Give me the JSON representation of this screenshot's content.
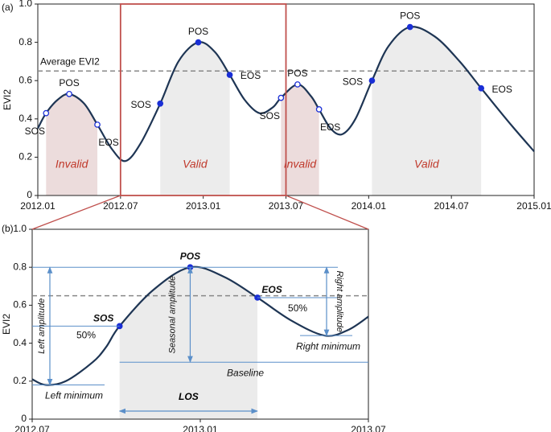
{
  "chart_data": [
    {
      "type": "line",
      "panel_label": "(a)",
      "ylabel": "EVI2",
      "color": "#1e3554",
      "marker_color": "#1a2fd6",
      "x": [
        2012.0,
        2012.05,
        2012.12,
        2012.19,
        2012.28,
        2012.36,
        2012.45,
        2012.53,
        2012.62,
        2012.74,
        2012.85,
        2012.97,
        2013.07,
        2013.16,
        2013.25,
        2013.34,
        2013.42,
        2013.47,
        2013.57,
        2013.65,
        2013.7,
        2013.77,
        2013.84,
        2013.92,
        2014.02,
        2014.12,
        2014.25,
        2014.4,
        2014.55,
        2014.68,
        2014.85,
        2015.0
      ],
      "values": [
        0.35,
        0.43,
        0.5,
        0.53,
        0.48,
        0.37,
        0.24,
        0.18,
        0.27,
        0.48,
        0.7,
        0.8,
        0.75,
        0.63,
        0.5,
        0.43,
        0.46,
        0.51,
        0.58,
        0.52,
        0.45,
        0.35,
        0.32,
        0.4,
        0.6,
        0.78,
        0.88,
        0.83,
        0.7,
        0.56,
        0.38,
        0.23
      ],
      "xlim": [
        2012.0,
        2015.0
      ],
      "ylim": [
        0,
        1
      ],
      "xticks": [
        {
          "value": 2012.0,
          "label": "2012.01"
        },
        {
          "value": 2012.5,
          "label": "2012.07"
        },
        {
          "value": 2013.0,
          "label": "2013.01"
        },
        {
          "value": 2013.5,
          "label": "2013.07"
        },
        {
          "value": 2014.0,
          "label": "2014.01"
        },
        {
          "value": 2014.5,
          "label": "2014.07"
        },
        {
          "value": 2015.0,
          "label": "2015.01"
        }
      ],
      "yticks": [
        0,
        0.2,
        0.4,
        0.6,
        0.8,
        {
          "value": 1,
          "label": "1.0"
        }
      ],
      "average": {
        "label": "Average EVI2",
        "value": 0.65
      },
      "regions": [
        {
          "label": "Invalid",
          "start": 2012.05,
          "end": 2012.36,
          "color": "#ecdcdc",
          "label_color": "#c0392b"
        },
        {
          "label": "Valid",
          "start": 2012.74,
          "end": 2013.16,
          "color": "#ececec",
          "label_color": "#c0392b"
        },
        {
          "label": "Invalid",
          "start": 2013.47,
          "end": 2013.7,
          "color": "#ecdcdc",
          "label_color": "#c0392b"
        },
        {
          "label": "Valid",
          "start": 2014.02,
          "end": 2014.68,
          "color": "#ececec",
          "label_color": "#c0392b"
        }
      ],
      "markers": [
        {
          "label": "SOS",
          "x": 2012.05,
          "y": 0.43,
          "filled": false
        },
        {
          "label": "POS",
          "x": 2012.19,
          "y": 0.53,
          "filled": false
        },
        {
          "label": "EOS",
          "x": 2012.36,
          "y": 0.37,
          "filled": false
        },
        {
          "label": "SOS",
          "x": 2012.74,
          "y": 0.48,
          "filled": true
        },
        {
          "label": "POS",
          "x": 2012.97,
          "y": 0.8,
          "filled": true
        },
        {
          "label": "EOS",
          "x": 2013.16,
          "y": 0.63,
          "filled": true
        },
        {
          "label": "SOS",
          "x": 2013.47,
          "y": 0.51,
          "filled": false
        },
        {
          "label": "POS",
          "x": 2013.57,
          "y": 0.58,
          "filled": false
        },
        {
          "label": "EOS",
          "x": 2013.7,
          "y": 0.45,
          "filled": false
        },
        {
          "label": "SOS",
          "x": 2014.02,
          "y": 0.6,
          "filled": true
        },
        {
          "label": "POS",
          "x": 2014.25,
          "y": 0.88,
          "filled": true
        },
        {
          "label": "EOS",
          "x": 2014.68,
          "y": 0.56,
          "filled": true
        }
      ]
    },
    {
      "type": "line",
      "panel_label": "(b)",
      "ylabel": "EVI2",
      "color": "#1e3554",
      "marker_color": "#1a2fd6",
      "x": [
        2012.5,
        2012.54,
        2012.6,
        2012.68,
        2012.72,
        2012.76,
        2012.86,
        2012.97,
        2013.07,
        2013.17,
        2013.27,
        2013.37,
        2013.44,
        2013.5
      ],
      "values": [
        0.21,
        0.18,
        0.2,
        0.3,
        0.38,
        0.49,
        0.68,
        0.8,
        0.75,
        0.64,
        0.52,
        0.44,
        0.47,
        0.54
      ],
      "xlim": [
        2012.5,
        2013.5
      ],
      "ylim": [
        0,
        1
      ],
      "xticks": [
        {
          "value": 2012.5,
          "label": "2012.07"
        },
        {
          "value": 2013.0,
          "label": "2013.01"
        },
        {
          "value": 2013.5,
          "label": "2013.07"
        }
      ],
      "yticks": [
        0,
        0.2,
        0.4,
        0.6,
        0.8,
        {
          "value": 1,
          "label": "1.0"
        }
      ],
      "average": {
        "value": 0.65
      },
      "regions": [
        {
          "label": "LOS",
          "start": 2012.76,
          "end": 2013.17,
          "color": "#ebebeb",
          "label_color": "#000000"
        }
      ],
      "markers": [
        {
          "label": "SOS",
          "x": 2012.76,
          "y": 0.49,
          "filled": true
        },
        {
          "label": "POS",
          "x": 2012.97,
          "y": 0.8,
          "filled": true
        },
        {
          "label": "EOS",
          "x": 2013.17,
          "y": 0.64,
          "filled": true
        }
      ],
      "levels": [
        {
          "label": "Left minimum",
          "value": 0.18
        },
        {
          "label": "Baseline",
          "value": 0.3
        },
        {
          "label": "Right minimum",
          "value": 0.44
        }
      ],
      "amplitudes": [
        "Left amplitude",
        "Seasonal amplitude",
        "Right amplitude"
      ],
      "thresholds": [
        "50%",
        "50%"
      ]
    }
  ]
}
